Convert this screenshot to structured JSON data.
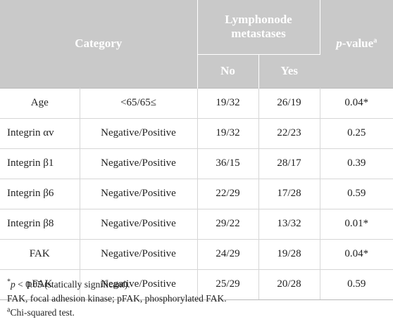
{
  "header": {
    "category": "Category",
    "lymph_line1": "Lymphonode",
    "lymph_line2": "metastases",
    "pvalue_p": "p",
    "pvalue_rest": "-value",
    "pvalue_sup": "a",
    "no": "No",
    "yes": "Yes"
  },
  "rows": [
    {
      "name": "Age",
      "group": "<65/65≤",
      "no": "19/32",
      "yes": "26/19",
      "p": "0.04*"
    },
    {
      "name": "Integrin αv",
      "group": "Negative/Positive",
      "no": "19/32",
      "yes": "22/23",
      "p": "0.25"
    },
    {
      "name": "Integrin β1",
      "group": "Negative/Positive",
      "no": "36/15",
      "yes": "28/17",
      "p": "0.39"
    },
    {
      "name": "Integrin β6",
      "group": "Negative/Positive",
      "no": "22/29",
      "yes": "17/28",
      "p": "0.59"
    },
    {
      "name": "Integrin β8",
      "group": "Negative/Positive",
      "no": "29/22",
      "yes": "13/32",
      "p": "0.01*"
    },
    {
      "name": "FAK",
      "group": "Negative/Positive",
      "no": "24/29",
      "yes": "19/28",
      "p": "0.04*"
    },
    {
      "name": "pFAK",
      "group": "Negative/Positive",
      "no": "25/29",
      "yes": "20/28",
      "p": "0.59"
    }
  ],
  "notes": {
    "n1_sup": "*",
    "n1_p": "p",
    "n1_text": " < 0.05 (statically significant).",
    "n2": "FAK, focal adhesion kinase; pFAK, phosphorylated FAK.",
    "n3_sup": "a",
    "n3_text": "Chi-squared test."
  }
}
